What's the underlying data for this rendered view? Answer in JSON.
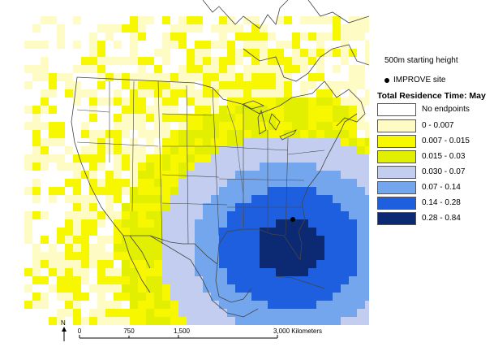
{
  "legend": {
    "starting_height": "500m starting height",
    "site_label": "IMPROVE site",
    "title": "Total Residence Time: May",
    "classes": [
      {
        "label": "No endpoints",
        "color": "#ffffff"
      },
      {
        "label": "0 - 0.007",
        "color": "#fffbc4"
      },
      {
        "label": "0.007 - 0.015",
        "color": "#f7f700"
      },
      {
        "label": "0.015 - 0.03",
        "color": "#e2ef00"
      },
      {
        "label": "0.030 - 0.07",
        "color": "#c3cdf0"
      },
      {
        "label": "0.07 - 0.14",
        "color": "#73a6ec"
      },
      {
        "label": "0.14 - 0.28",
        "color": "#1e5fe0"
      },
      {
        "label": "0.28 - 0.84",
        "color": "#0c2a73"
      }
    ]
  },
  "scale_bar": {
    "ticks": [
      "0",
      "750",
      "1,500",
      "3,000 Kilometers"
    ],
    "north": "N"
  }
}
